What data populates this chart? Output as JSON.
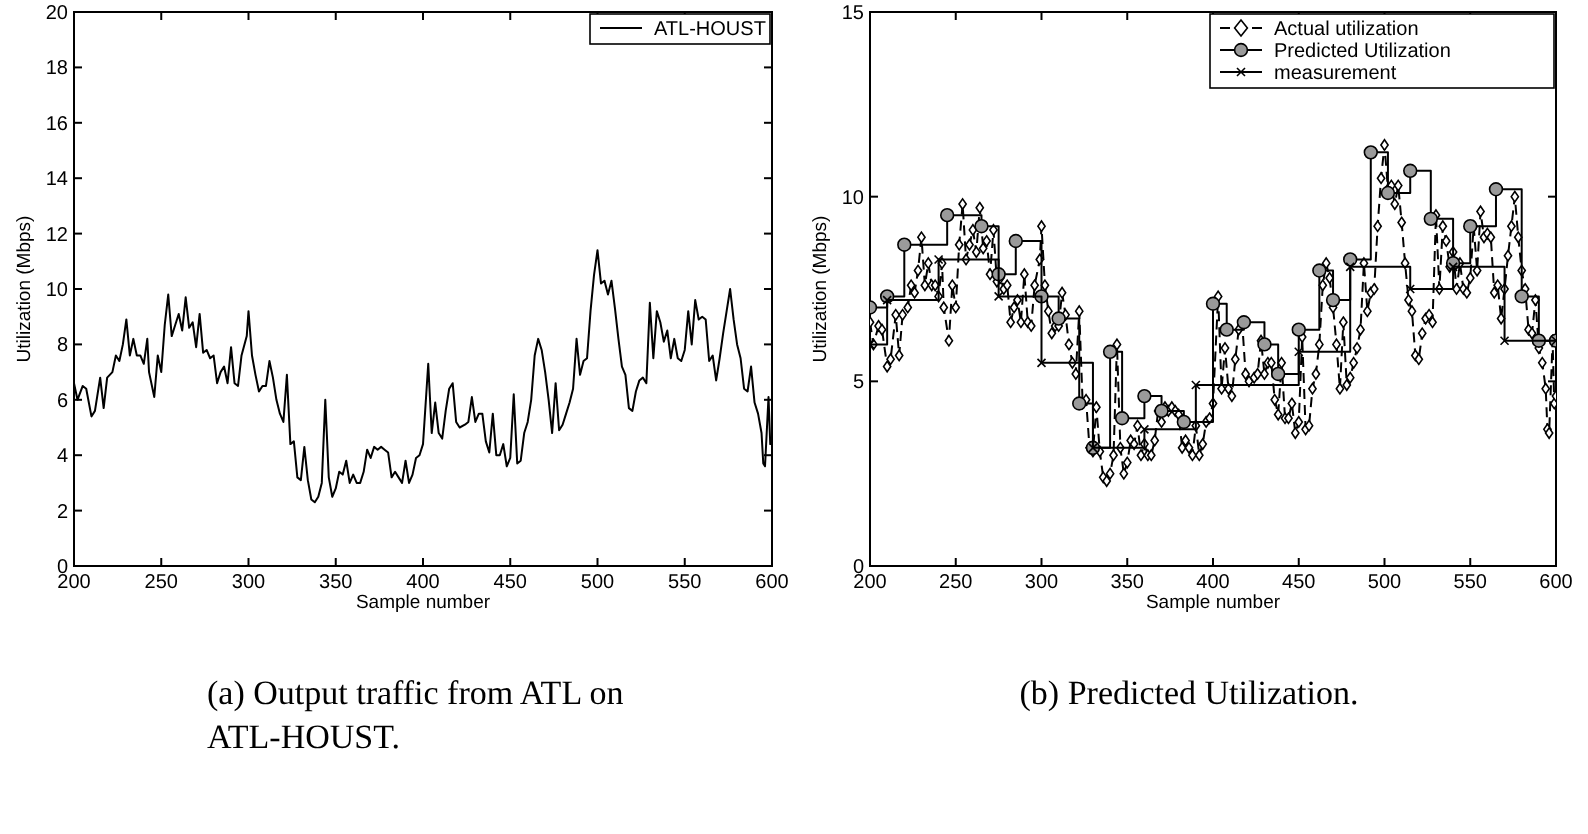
{
  "chart_data": [
    {
      "type": "line",
      "xlabel": "Sample number",
      "ylabel": "Utilization (Mbps)",
      "xlim": [
        200,
        600
      ],
      "ylim": [
        0,
        20
      ],
      "xticks": [
        200,
        250,
        300,
        350,
        400,
        450,
        500,
        550,
        600
      ],
      "yticks": [
        0,
        2,
        4,
        6,
        8,
        10,
        12,
        14,
        16,
        18,
        20
      ],
      "legend": "top right",
      "grid": false,
      "marker": "none",
      "annotations": [
        "(a) Output traffic from ATL on ATL-HOUST."
      ],
      "series": [
        {
          "name": "ATL-HOUST",
          "color": "#000000",
          "line_style": "solid",
          "x": [
            200,
            202,
            205,
            207,
            210,
            212,
            215,
            217,
            219,
            222,
            224,
            226,
            228,
            230,
            232,
            234,
            236,
            238,
            240,
            242,
            243,
            246,
            248,
            250,
            252,
            254,
            256,
            258,
            260,
            262,
            264,
            266,
            268,
            270,
            272,
            274,
            276,
            278,
            280,
            282,
            284,
            286,
            288,
            290,
            292,
            294,
            296,
            299,
            300,
            302,
            304,
            306,
            308,
            310,
            312,
            314,
            316,
            318,
            320,
            322,
            324,
            326,
            328,
            330,
            332,
            334,
            336,
            338,
            340,
            342,
            344,
            346,
            348,
            350,
            352,
            354,
            356,
            358,
            360,
            362,
            364,
            366,
            368,
            370,
            372,
            374,
            376,
            378,
            380,
            382,
            384,
            386,
            388,
            390,
            392,
            394,
            396,
            398,
            400,
            403,
            405,
            407,
            409,
            411,
            413,
            415,
            417,
            419,
            421,
            424,
            426,
            428,
            430,
            432,
            434,
            436,
            438,
            440,
            442,
            444,
            446,
            448,
            450,
            452,
            454,
            456,
            458,
            460,
            462,
            464,
            466,
            468,
            470,
            472,
            474,
            476,
            478,
            480,
            482,
            484,
            486,
            488,
            490,
            492,
            494,
            496,
            498,
            500,
            502,
            504,
            506,
            508,
            510,
            512,
            514,
            516,
            518,
            520,
            522,
            524,
            526,
            528,
            530,
            532,
            534,
            536,
            538,
            540,
            542,
            544,
            546,
            548,
            550,
            552,
            554,
            556,
            558,
            560,
            562,
            564,
            566,
            568,
            570,
            572,
            574,
            576,
            578,
            580,
            582,
            584,
            586,
            588,
            590,
            592,
            594,
            595,
            596,
            598,
            599,
            600
          ],
          "values": [
            6.6,
            6.0,
            6.5,
            6.4,
            5.4,
            5.6,
            6.8,
            5.7,
            6.8,
            7.0,
            7.6,
            7.4,
            8.0,
            8.9,
            7.6,
            8.2,
            7.6,
            7.6,
            7.3,
            8.2,
            7.0,
            6.1,
            7.6,
            7.0,
            8.7,
            9.8,
            8.3,
            8.7,
            9.1,
            8.5,
            9.7,
            8.6,
            8.8,
            7.9,
            9.1,
            7.7,
            7.8,
            7.5,
            7.6,
            6.6,
            7.0,
            7.2,
            6.6,
            7.9,
            6.6,
            6.5,
            7.6,
            8.3,
            9.2,
            7.6,
            6.9,
            6.3,
            6.5,
            6.5,
            7.4,
            6.8,
            6.0,
            5.5,
            5.2,
            6.9,
            4.4,
            4.5,
            3.2,
            3.1,
            4.3,
            3.1,
            2.4,
            2.3,
            2.5,
            3.0,
            6.0,
            3.2,
            2.5,
            2.8,
            3.4,
            3.3,
            3.8,
            3.0,
            3.3,
            3.0,
            3.0,
            3.4,
            4.2,
            3.9,
            4.3,
            4.2,
            4.3,
            4.2,
            4.1,
            3.2,
            3.4,
            3.2,
            3.0,
            3.8,
            3.0,
            3.3,
            3.9,
            4.0,
            4.4,
            7.3,
            4.8,
            5.9,
            4.8,
            4.6,
            5.6,
            6.4,
            6.6,
            5.2,
            5.0,
            5.1,
            5.2,
            6.1,
            5.2,
            5.5,
            5.5,
            4.5,
            4.1,
            5.5,
            4.0,
            4.0,
            4.4,
            3.6,
            3.9,
            6.2,
            3.7,
            3.8,
            4.8,
            5.2,
            6.0,
            7.6,
            8.2,
            7.8,
            7.0,
            6.0,
            4.8,
            6.6,
            4.9,
            5.1,
            5.5,
            5.9,
            6.4,
            8.2,
            6.9,
            7.4,
            7.5,
            9.2,
            10.5,
            11.4,
            10.2,
            10.3,
            9.8,
            10.3,
            9.3,
            8.2,
            7.2,
            6.9,
            5.7,
            5.6,
            6.3,
            6.7,
            6.8,
            6.6,
            9.5,
            7.5,
            9.2,
            8.8,
            8.1,
            8.5,
            7.5,
            8.2,
            7.5,
            7.4,
            7.8,
            9.2,
            8.0,
            9.6,
            8.9,
            9.0,
            8.9,
            7.4,
            7.6,
            6.7,
            7.5,
            8.4,
            9.2,
            10.0,
            8.9,
            8.0,
            7.5,
            6.4,
            6.3,
            7.2,
            5.9,
            5.5,
            4.8,
            3.7,
            3.6,
            6.1,
            4.4,
            4.6
          ]
        }
      ]
    },
    {
      "type": "line",
      "xlabel": "Sample number",
      "ylabel": "Utilization (Mbps)",
      "xlim": [
        200,
        600
      ],
      "ylim": [
        0,
        15
      ],
      "xticks": [
        200,
        250,
        300,
        350,
        400,
        450,
        500,
        550,
        600
      ],
      "yticks": [
        0,
        5,
        10,
        15
      ],
      "legend": "top right",
      "grid": false,
      "annotations": [
        "(b) Predicted Utilization."
      ],
      "series": [
        {
          "name": "Actual utilization",
          "color": "#000000",
          "line_style": "dashed",
          "marker": "diamond",
          "x": [
            200,
            202,
            205,
            207,
            210,
            212,
            215,
            217,
            219,
            222,
            224,
            226,
            228,
            230,
            232,
            234,
            236,
            238,
            240,
            242,
            243,
            246,
            248,
            250,
            252,
            254,
            256,
            258,
            260,
            262,
            264,
            266,
            268,
            270,
            272,
            274,
            276,
            278,
            280,
            282,
            284,
            286,
            288,
            290,
            292,
            294,
            296,
            299,
            300,
            302,
            304,
            306,
            308,
            310,
            312,
            314,
            316,
            318,
            320,
            322,
            324,
            326,
            328,
            330,
            332,
            334,
            336,
            338,
            340,
            342,
            344,
            346,
            348,
            350,
            352,
            354,
            356,
            358,
            360,
            362,
            364,
            366,
            368,
            370,
            372,
            374,
            376,
            378,
            380,
            382,
            384,
            386,
            388,
            390,
            392,
            394,
            396,
            398,
            400,
            403,
            405,
            407,
            409,
            411,
            413,
            415,
            417,
            419,
            421,
            424,
            426,
            428,
            430,
            432,
            434,
            436,
            438,
            440,
            442,
            444,
            446,
            448,
            450,
            452,
            454,
            456,
            458,
            460,
            462,
            464,
            466,
            468,
            470,
            472,
            474,
            476,
            478,
            480,
            482,
            484,
            486,
            488,
            490,
            492,
            494,
            496,
            498,
            500,
            502,
            504,
            506,
            508,
            510,
            512,
            514,
            516,
            518,
            520,
            522,
            524,
            526,
            528,
            530,
            532,
            534,
            536,
            538,
            540,
            542,
            544,
            546,
            548,
            550,
            552,
            554,
            556,
            558,
            560,
            562,
            564,
            566,
            568,
            570,
            572,
            574,
            576,
            578,
            580,
            582,
            584,
            586,
            588,
            590,
            592,
            594,
            595,
            596,
            598,
            599,
            600
          ],
          "values": [
            6.6,
            6.0,
            6.5,
            6.4,
            5.4,
            5.6,
            6.8,
            5.7,
            6.8,
            7.0,
            7.6,
            7.4,
            8.0,
            8.9,
            7.6,
            8.2,
            7.6,
            7.6,
            7.3,
            8.2,
            7.0,
            6.1,
            7.6,
            7.0,
            8.7,
            9.8,
            8.3,
            8.7,
            9.1,
            8.5,
            9.7,
            8.6,
            8.8,
            7.9,
            9.1,
            7.7,
            7.8,
            7.5,
            7.6,
            6.6,
            7.0,
            7.2,
            6.6,
            7.9,
            6.6,
            6.5,
            7.6,
            8.3,
            9.2,
            7.6,
            6.9,
            6.3,
            6.5,
            6.5,
            7.4,
            6.8,
            6.0,
            5.5,
            5.2,
            6.9,
            4.4,
            4.5,
            3.2,
            3.1,
            4.3,
            3.1,
            2.4,
            2.3,
            2.5,
            3.0,
            6.0,
            3.2,
            2.5,
            2.8,
            3.4,
            3.3,
            3.8,
            3.0,
            3.3,
            3.0,
            3.0,
            3.4,
            4.2,
            3.9,
            4.3,
            4.2,
            4.3,
            4.2,
            4.1,
            3.2,
            3.4,
            3.2,
            3.0,
            3.8,
            3.0,
            3.3,
            3.9,
            4.0,
            4.4,
            7.3,
            4.8,
            5.9,
            4.8,
            4.6,
            5.6,
            6.4,
            6.6,
            5.2,
            5.0,
            5.1,
            5.2,
            6.1,
            5.2,
            5.5,
            5.5,
            4.5,
            4.1,
            5.5,
            4.0,
            4.0,
            4.4,
            3.6,
            3.9,
            6.2,
            3.7,
            3.8,
            4.8,
            5.2,
            6.0,
            7.6,
            8.2,
            7.8,
            7.0,
            6.0,
            4.8,
            6.6,
            4.9,
            5.1,
            5.5,
            5.9,
            6.4,
            8.2,
            6.9,
            7.4,
            7.5,
            9.2,
            10.5,
            11.4,
            10.2,
            10.3,
            9.8,
            10.3,
            9.3,
            8.2,
            7.2,
            6.9,
            5.7,
            5.6,
            6.3,
            6.7,
            6.8,
            6.6,
            9.5,
            7.5,
            9.2,
            8.8,
            8.1,
            8.5,
            7.5,
            8.2,
            7.5,
            7.4,
            7.8,
            9.2,
            8.0,
            9.6,
            8.9,
            9.0,
            8.9,
            7.4,
            7.6,
            6.7,
            7.5,
            8.4,
            9.2,
            10.0,
            8.9,
            8.0,
            7.5,
            6.4,
            6.3,
            7.2,
            5.9,
            5.5,
            4.8,
            3.7,
            3.6,
            6.1,
            4.4,
            4.6
          ]
        },
        {
          "name": "Predicted Utilization",
          "type": "step",
          "color": "#000000",
          "line_style": "solid",
          "marker": "circle",
          "x": [
            200,
            210,
            220,
            245,
            265,
            275,
            285,
            300,
            310,
            322,
            330,
            340,
            347,
            360,
            370,
            383,
            400,
            408,
            418,
            430,
            438,
            450,
            462,
            470,
            480,
            492,
            502,
            515,
            527,
            540,
            550,
            565,
            580,
            590,
            600
          ],
          "values": [
            7.0,
            7.3,
            8.7,
            9.5,
            9.2,
            7.9,
            8.8,
            7.3,
            6.7,
            4.4,
            3.2,
            5.8,
            4.0,
            4.6,
            4.2,
            3.9,
            7.1,
            6.4,
            6.6,
            6.0,
            5.2,
            6.4,
            8.0,
            7.2,
            8.3,
            11.2,
            10.1,
            10.7,
            9.4,
            8.2,
            9.2,
            10.2,
            7.3,
            6.1,
            6.1
          ]
        },
        {
          "name": "measurement",
          "type": "step",
          "color": "#000000",
          "line_style": "solid",
          "marker": "cross",
          "x": [
            200,
            210,
            240,
            275,
            300,
            330,
            360,
            390,
            450,
            480,
            515,
            540,
            570,
            600
          ],
          "values": [
            6.0,
            7.2,
            8.3,
            7.3,
            5.5,
            3.2,
            3.7,
            4.9,
            5.8,
            8.1,
            7.5,
            8.1,
            6.1,
            6.1
          ]
        }
      ]
    }
  ]
}
